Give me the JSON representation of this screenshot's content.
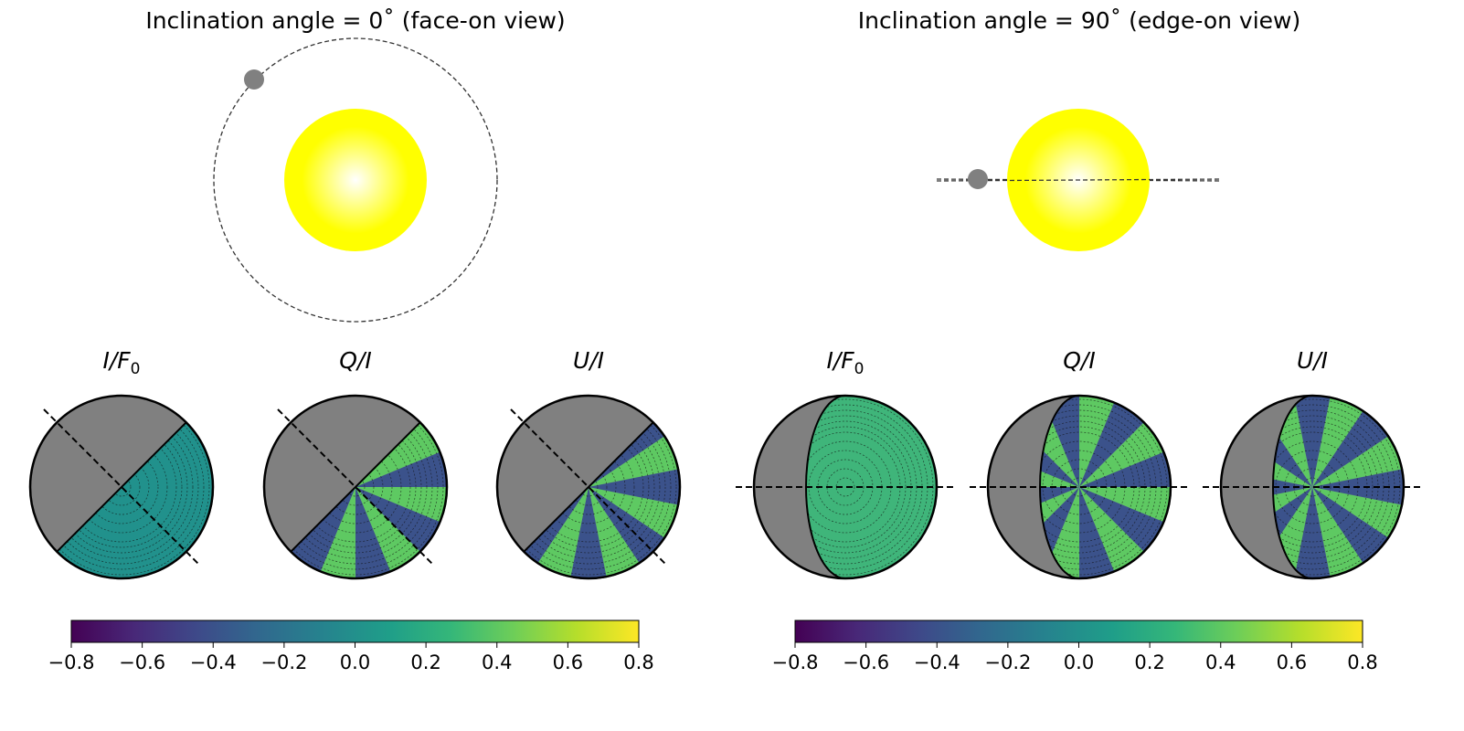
{
  "panels": [
    {
      "title": "Inclination angle = 0˚  (face-on view)",
      "view": "face-on",
      "labels": [
        "I/F",
        "Q/I",
        "U/I"
      ],
      "subscript": "0"
    },
    {
      "title": "Inclination angle = 90˚  (edge-on view)",
      "view": "edge-on",
      "labels": [
        "I/F",
        "Q/I",
        "U/I"
      ],
      "subscript": "0"
    }
  ],
  "colorbar": {
    "ticks": [
      "−0.8",
      "−0.6",
      "−0.4",
      "−0.2",
      "0.0",
      "0.2",
      "0.4",
      "0.6",
      "0.8"
    ],
    "range": [
      -0.8,
      0.8
    ],
    "colormap": "viridis"
  },
  "colors": {
    "star_center": "#ffffff",
    "star_edge": "#ffff00",
    "planet": "#808080",
    "night_side": "#808080",
    "intensity_fill": "#21918c",
    "wedge_dark": "#3b528b",
    "wedge_light": "#5ec962",
    "wedge_mid": "#2a788e"
  }
}
